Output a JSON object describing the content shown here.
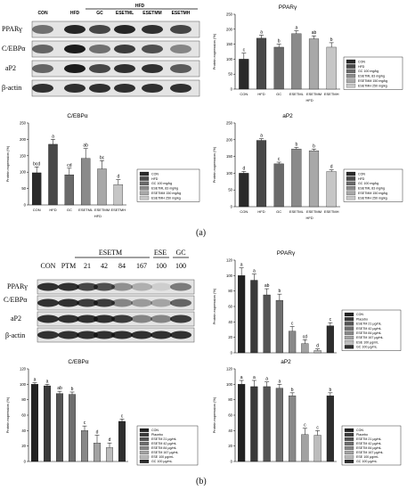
{
  "panel_a_label": "(a)",
  "panel_b_label": "(b)",
  "blot_a": {
    "lanes": [
      "CON",
      "HFD",
      "GC",
      "ESETML",
      "ESETMM",
      "ESETMH"
    ],
    "group_label": "HFD",
    "rows": [
      "PPARγ",
      "C/EBPα",
      "aP2",
      "β-actin"
    ]
  },
  "blot_b": {
    "lanes": [
      "CON",
      "PTM",
      "21",
      "42",
      "84",
      "167",
      "100",
      "100"
    ],
    "group_esetm": "ESETM",
    "group_ese": "ESE",
    "group_gc": "GC",
    "rows": [
      "PPARγ",
      "C/EBPα",
      "aP2",
      "β-actin"
    ]
  },
  "colors": {
    "CON": "#2a2a2a",
    "HFD": "#484848",
    "GC": "#6a6a6a",
    "L": "#8a8a8a",
    "M": "#a8a8a8",
    "H": "#c6c6c6"
  },
  "chart_data": [
    {
      "id": "a-ppar",
      "type": "bar",
      "title": "PPARγ",
      "ylabel": "Protein expression (%)",
      "xlabel": "HFD",
      "ylim": [
        0,
        250
      ],
      "yticks": [
        0,
        50,
        100,
        150,
        200,
        250
      ],
      "categories": [
        "CON",
        "HFD",
        "GC",
        "ESETML",
        "ESETMM",
        "ESETMH"
      ],
      "values": [
        100,
        170,
        140,
        185,
        168,
        140
      ],
      "errors": [
        20,
        10,
        10,
        10,
        10,
        15
      ],
      "labels": [
        "c",
        "a",
        "b",
        "a",
        "ab",
        "b"
      ],
      "legend": [
        "CON",
        "HFD",
        "GC 100 mg/kg",
        "ESETML 83 mg/kg",
        "ESETMM 150 mg/kg",
        "ESETMH 250 mg/kg"
      ]
    },
    {
      "id": "a-cebp",
      "type": "bar",
      "title": "C/EBPα",
      "ylabel": "Protein expression (%)",
      "xlabel": "HFD",
      "ylim": [
        0,
        250
      ],
      "yticks": [
        0,
        50,
        100,
        150,
        200,
        250
      ],
      "categories": [
        "CON",
        "HFD",
        "GC",
        "ESETML",
        "ESETMM",
        "ESETMH"
      ],
      "values": [
        98,
        185,
        92,
        142,
        110,
        62
      ],
      "errors": [
        18,
        15,
        20,
        30,
        25,
        15
      ],
      "labels": [
        "bcd",
        "a",
        "cd",
        "ab",
        "bc",
        "d"
      ],
      "legend": [
        "CON",
        "HFD",
        "GC 100 mg/kg",
        "ESETML 83 mg/kg",
        "ESETMM 150 mg/kg",
        "ESETMH 250 mg/kg"
      ]
    },
    {
      "id": "a-ap2",
      "type": "bar",
      "title": "aP2",
      "ylabel": "Protein expression (%)",
      "xlabel": "HFD",
      "ylim": [
        0,
        250
      ],
      "yticks": [
        0,
        50,
        100,
        150,
        200,
        250
      ],
      "categories": [
        "CON",
        "HFD",
        "GC",
        "ESETML",
        "ESETMM",
        "ESETMH"
      ],
      "values": [
        100,
        198,
        128,
        172,
        167,
        105
      ],
      "errors": [
        5,
        5,
        5,
        5,
        5,
        5
      ],
      "labels": [
        "d",
        "a",
        "c",
        "b",
        "b",
        "d"
      ],
      "legend": [
        "CON",
        "HFD",
        "GC 100 mg/kg",
        "ESETML 83 mg/kg",
        "ESETMM 150 mg/kg",
        "ESETMH 250 mg/kg"
      ]
    },
    {
      "id": "b-ppar",
      "type": "bar",
      "title": "PPARγ",
      "ylabel": "Protein expression (%)",
      "xlabel": "",
      "ylim": [
        0,
        120
      ],
      "yticks": [
        0,
        20,
        40,
        60,
        80,
        100,
        120
      ],
      "categories": [
        "CON",
        "Placebo",
        "ESETM 21",
        "ESETM 42",
        "ESETM 84",
        "ESETM 167",
        "ESE 100",
        "GC 100"
      ],
      "values": [
        100,
        94,
        75,
        68,
        28,
        12,
        3,
        35
      ],
      "errors": [
        10,
        8,
        8,
        8,
        6,
        5,
        2,
        4
      ],
      "labels": [
        "a",
        "a",
        "ab",
        "b",
        "c",
        "cd",
        "d",
        "c"
      ],
      "legend": [
        "CON",
        "Placebo",
        "ESETM 21 μg/mL",
        "ESETM 42 μg/mL",
        "ESETM 84 μg/mL",
        "ESETM 167 μg/mL",
        "ESE 100 μg/mL",
        "GC 100 μg/mL"
      ]
    },
    {
      "id": "b-cebp",
      "type": "bar",
      "title": "C/EBPα",
      "ylabel": "Protein expression (%)",
      "xlabel": "",
      "ylim": [
        0,
        120
      ],
      "yticks": [
        0,
        20,
        40,
        60,
        80,
        100,
        120
      ],
      "categories": [
        "CON",
        "Placebo",
        "ESETM 21",
        "ESETM 42",
        "ESETM 84",
        "ESETM 167",
        "ESE 100",
        "GC 100"
      ],
      "values": [
        100,
        98,
        88,
        87,
        40,
        24,
        18,
        52
      ],
      "errors": [
        2,
        2,
        3,
        3,
        6,
        10,
        6,
        3
      ],
      "labels": [
        "a",
        "a",
        "ab",
        "b",
        "c",
        "d",
        "d",
        "c"
      ],
      "legend": [
        "CON",
        "Placebo",
        "ESETM 21 μg/mL",
        "ESETM 42 μg/mL",
        "ESETM 84 μg/mL",
        "ESETM 167 μg/mL",
        "ESE 100 μg/mL",
        "GC 100 μg/mL"
      ]
    },
    {
      "id": "b-ap2",
      "type": "bar",
      "title": "aP2",
      "ylabel": "Protein expression (%)",
      "xlabel": "",
      "ylim": [
        0,
        120
      ],
      "yticks": [
        0,
        20,
        40,
        60,
        80,
        100,
        120
      ],
      "categories": [
        "CON",
        "Placebo",
        "ESETM 21",
        "ESETM 42",
        "ESETM 84",
        "ESETM 167",
        "ESE 100",
        "GC 100"
      ],
      "values": [
        100,
        97,
        97,
        95,
        85,
        35,
        34,
        85
      ],
      "errors": [
        5,
        8,
        6,
        5,
        4,
        8,
        6,
        4
      ],
      "labels": [
        "a",
        "a",
        "a",
        "a",
        "b",
        "c",
        "c",
        "b"
      ],
      "legend": [
        "CON",
        "Placebo",
        "ESETM 21 μg/mL",
        "ESETM 42 μg/mL",
        "ESETM 84 μg/mL",
        "ESETM 167 μg/mL",
        "ESE 100 μg/mL",
        "GC 100 μg/mL"
      ]
    }
  ]
}
